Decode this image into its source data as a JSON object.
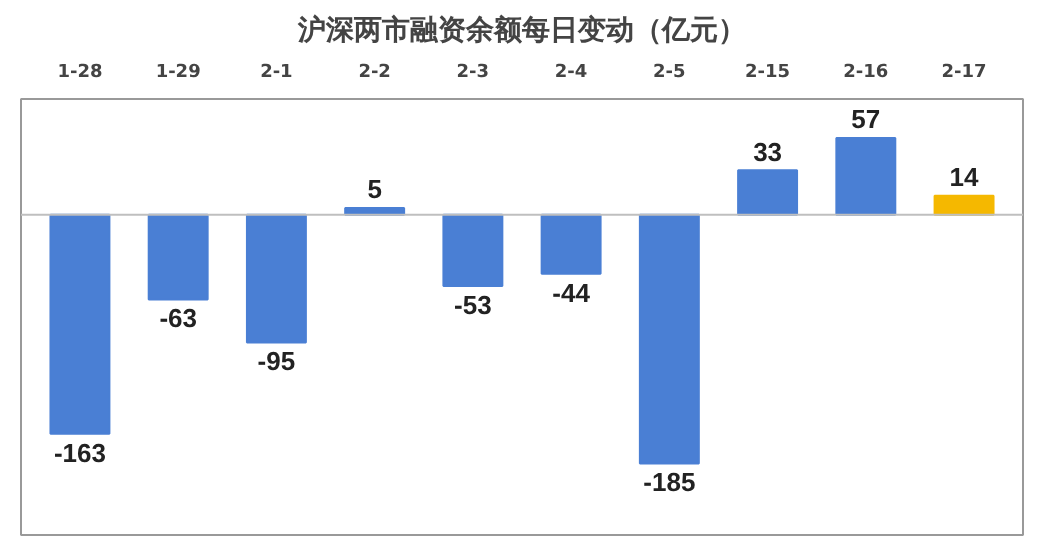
{
  "chart_data": {
    "type": "bar",
    "title": "沪深两市融资余额每日变动（亿元）",
    "categories": [
      "1-28",
      "1-29",
      "2-1",
      "2-2",
      "2-3",
      "2-4",
      "2-5",
      "2-15",
      "2-16",
      "2-17"
    ],
    "values": [
      -163,
      -63,
      -95,
      5,
      -53,
      -44,
      -185,
      33,
      57,
      14
    ],
    "colors": [
      "#4a7fd4",
      "#4a7fd4",
      "#4a7fd4",
      "#4a7fd4",
      "#4a7fd4",
      "#4a7fd4",
      "#4a7fd4",
      "#4a7fd4",
      "#4a7fd4",
      "#f5b800"
    ],
    "data_labels": true
  }
}
